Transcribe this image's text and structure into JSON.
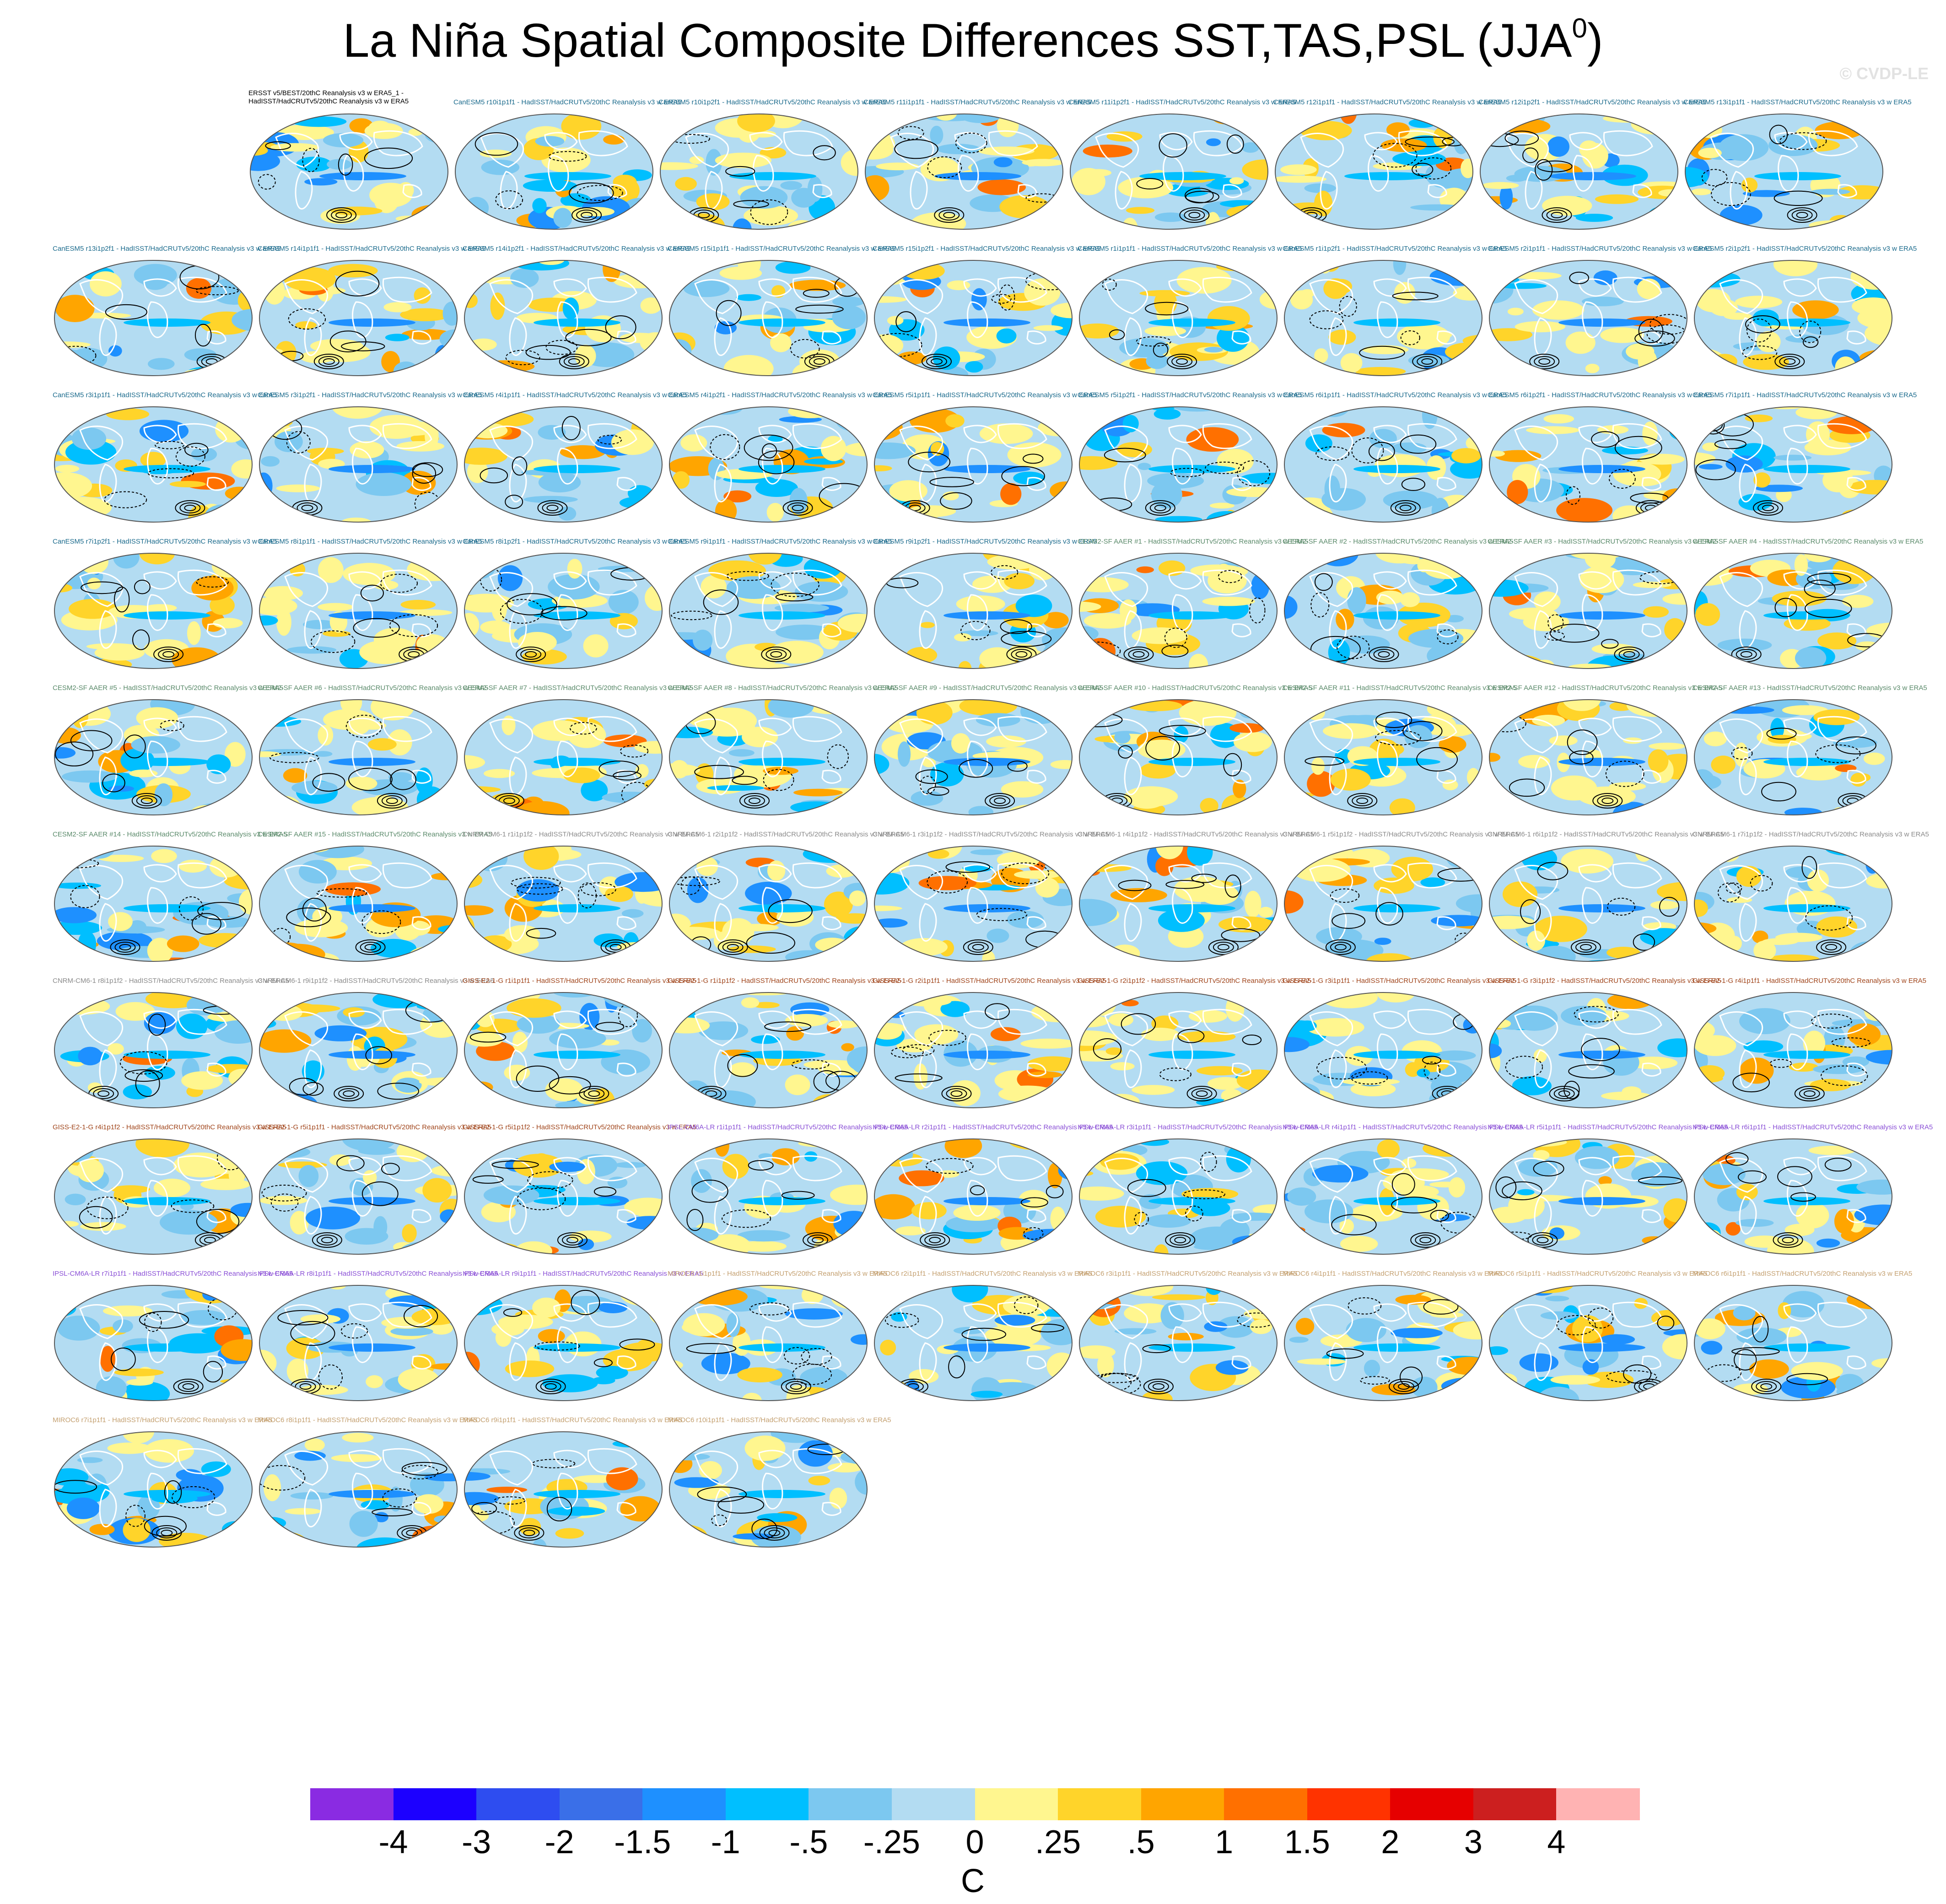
{
  "title": {
    "main": "La Niña Spatial Composite Differences SST,TAS,PSL (JJA",
    "superscript": "0",
    "close": ")"
  },
  "watermark": "© CVDP-LE",
  "chart_data": {
    "type": "heatmap",
    "title": "La Niña Spatial Composite Differences SST,TAS,PSL (JJA0)",
    "description_fields": [
      "SST",
      "TAS",
      "PSL"
    ],
    "season": "JJA0",
    "colorbar": {
      "unit": "C",
      "labels": [
        "-4",
        "-3",
        "-2",
        "-1.5",
        "-1",
        "-.5",
        "-.25",
        "0",
        ".25",
        ".5",
        "1",
        "1.5",
        "2",
        "3",
        "4"
      ],
      "colors": [
        "#8a2be2",
        "#1c00ff",
        "#2e4df0",
        "#3a6fe8",
        "#1e90ff",
        "#00bfff",
        "#7cc8f0",
        "#b3dcf2",
        "#fff68f",
        "#ffd42a",
        "#ffa500",
        "#ff7000",
        "#ff3300",
        "#e60000",
        "#cc1f1f",
        "#ffb3b3"
      ]
    },
    "panels": [
      {
        "title": "ERSST v5/BEST/20thC Reanalysis v3 w ERA5_1 -\nHadISST/HadCRUTv5/20thC Reanalysis v3 w ERA5",
        "color": "#000000"
      },
      {
        "title": "CanESM5 r10i1p1f1 - HadISST/HadCRUTv5/20thC Reanalysis v3 w ERA5",
        "color": "#1a6a8c"
      },
      {
        "title": "CanESM5 r10i1p2f1 - HadISST/HadCRUTv5/20thC Reanalysis v3 w ERA5",
        "color": "#1a6a8c"
      },
      {
        "title": "CanESM5 r11i1p1f1 - HadISST/HadCRUTv5/20thC Reanalysis v3 w ERA5",
        "color": "#1a6a8c"
      },
      {
        "title": "CanESM5 r11i1p2f1 - HadISST/HadCRUTv5/20thC Reanalysis v3 w ERA5",
        "color": "#1a6a8c"
      },
      {
        "title": "CanESM5 r12i1p1f1 - HadISST/HadCRUTv5/20thC Reanalysis v3 w ERA5",
        "color": "#1a6a8c"
      },
      {
        "title": "CanESM5 r12i1p2f1 - HadISST/HadCRUTv5/20thC Reanalysis v3 w ERA5",
        "color": "#1a6a8c"
      },
      {
        "title": "CanESM5 r13i1p1f1 - HadISST/HadCRUTv5/20thC Reanalysis v3 w ERA5",
        "color": "#1a6a8c"
      },
      {
        "title": "CanESM5 r13i1p2f1 - HadISST/HadCRUTv5/20thC Reanalysis v3 w ERA5",
        "color": "#1a6a8c"
      },
      {
        "title": "CanESM5 r14i1p1f1 - HadISST/HadCRUTv5/20thC Reanalysis v3 w ERA5",
        "color": "#1a6a8c"
      },
      {
        "title": "CanESM5 r14i1p2f1 - HadISST/HadCRUTv5/20thC Reanalysis v3 w ERA5",
        "color": "#1a6a8c"
      },
      {
        "title": "CanESM5 r15i1p1f1 - HadISST/HadCRUTv5/20thC Reanalysis v3 w ERA5",
        "color": "#1a6a8c"
      },
      {
        "title": "CanESM5 r15i1p2f1 - HadISST/HadCRUTv5/20thC Reanalysis v3 w ERA5",
        "color": "#1a6a8c"
      },
      {
        "title": "CanESM5 r1i1p1f1 - HadISST/HadCRUTv5/20thC Reanalysis v3 w ERA5",
        "color": "#1a6a8c"
      },
      {
        "title": "CanESM5 r1i1p2f1 - HadISST/HadCRUTv5/20thC Reanalysis v3 w ERA5",
        "color": "#1a6a8c"
      },
      {
        "title": "CanESM5 r2i1p1f1 - HadISST/HadCRUTv5/20thC Reanalysis v3 w ERA5",
        "color": "#1a6a8c"
      },
      {
        "title": "CanESM5 r2i1p2f1 - HadISST/HadCRUTv5/20thC Reanalysis v3 w ERA5",
        "color": "#1a6a8c"
      },
      {
        "title": "CanESM5 r3i1p1f1 - HadISST/HadCRUTv5/20thC Reanalysis v3 w ERA5",
        "color": "#1a6a8c"
      },
      {
        "title": "CanESM5 r3i1p2f1 - HadISST/HadCRUTv5/20thC Reanalysis v3 w ERA5",
        "color": "#1a6a8c"
      },
      {
        "title": "CanESM5 r4i1p1f1 - HadISST/HadCRUTv5/20thC Reanalysis v3 w ERA5",
        "color": "#1a6a8c"
      },
      {
        "title": "CanESM5 r4i1p2f1 - HadISST/HadCRUTv5/20thC Reanalysis v3 w ERA5",
        "color": "#1a6a8c"
      },
      {
        "title": "CanESM5 r5i1p1f1 - HadISST/HadCRUTv5/20thC Reanalysis v3 w ERA5",
        "color": "#1a6a8c"
      },
      {
        "title": "CanESM5 r5i1p2f1 - HadISST/HadCRUTv5/20thC Reanalysis v3 w ERA5",
        "color": "#1a6a8c"
      },
      {
        "title": "CanESM5 r6i1p1f1 - HadISST/HadCRUTv5/20thC Reanalysis v3 w ERA5",
        "color": "#1a6a8c"
      },
      {
        "title": "CanESM5 r6i1p2f1 - HadISST/HadCRUTv5/20thC Reanalysis v3 w ERA5",
        "color": "#1a6a8c"
      },
      {
        "title": "CanESM5 r7i1p1f1 - HadISST/HadCRUTv5/20thC Reanalysis v3 w ERA5",
        "color": "#1a6a8c"
      },
      {
        "title": "CanESM5 r7i1p2f1 - HadISST/HadCRUTv5/20thC Reanalysis v3 w ERA5",
        "color": "#1a6a8c"
      },
      {
        "title": "CanESM5 r8i1p1f1 - HadISST/HadCRUTv5/20thC Reanalysis v3 w ERA5",
        "color": "#1a6a8c"
      },
      {
        "title": "CanESM5 r8i1p2f1 - HadISST/HadCRUTv5/20thC Reanalysis v3 w ERA5",
        "color": "#1a6a8c"
      },
      {
        "title": "CanESM5 r9i1p1f1 - HadISST/HadCRUTv5/20thC Reanalysis v3 w ERA5",
        "color": "#1a6a8c"
      },
      {
        "title": "CanESM5 r9i1p2f1 - HadISST/HadCRUTv5/20thC Reanalysis v3 w ERA5",
        "color": "#1a6a8c"
      },
      {
        "title": "CESM2-SF AAER #1 - HadISST/HadCRUTv5/20thC Reanalysis v3 w ERA5",
        "color": "#5a8a6a"
      },
      {
        "title": "CESM2-SF AAER #2 - HadISST/HadCRUTv5/20thC Reanalysis v3 w ERA5",
        "color": "#5a8a6a"
      },
      {
        "title": "CESM2-SF AAER #3 - HadISST/HadCRUTv5/20thC Reanalysis v3 w ERA5",
        "color": "#5a8a6a"
      },
      {
        "title": "CESM2-SF AAER #4 - HadISST/HadCRUTv5/20thC Reanalysis v3 w ERA5",
        "color": "#5a8a6a"
      },
      {
        "title": "CESM2-SF AAER #5 - HadISST/HadCRUTv5/20thC Reanalysis v3 w ERA5",
        "color": "#5a8a6a"
      },
      {
        "title": "CESM2-SF AAER #6 - HadISST/HadCRUTv5/20thC Reanalysis v3 w ERA5",
        "color": "#5a8a6a"
      },
      {
        "title": "CESM2-SF AAER #7 - HadISST/HadCRUTv5/20thC Reanalysis v3 w ERA5",
        "color": "#5a8a6a"
      },
      {
        "title": "CESM2-SF AAER #8 - HadISST/HadCRUTv5/20thC Reanalysis v3 w ERA5",
        "color": "#5a8a6a"
      },
      {
        "title": "CESM2-SF AAER #9 - HadISST/HadCRUTv5/20thC Reanalysis v3 w ERA5",
        "color": "#5a8a6a"
      },
      {
        "title": "CESM2-SF AAER #10 - HadISST/HadCRUTv5/20thC Reanalysis v3 w ERA5",
        "color": "#5a8a6a"
      },
      {
        "title": "CESM2-SF AAER #11 - HadISST/HadCRUTv5/20thC Reanalysis v3 w ERA5",
        "color": "#5a8a6a"
      },
      {
        "title": "CESM2-SF AAER #12 - HadISST/HadCRUTv5/20thC Reanalysis v3 w ERA5",
        "color": "#5a8a6a"
      },
      {
        "title": "CESM2-SF AAER #13 - HadISST/HadCRUTv5/20thC Reanalysis v3 w ERA5",
        "color": "#5a8a6a"
      },
      {
        "title": "CESM2-SF AAER #14 - HadISST/HadCRUTv5/20thC Reanalysis v3 w ERA5",
        "color": "#5a8a6a"
      },
      {
        "title": "CESM2-SF AAER #15 - HadISST/HadCRUTv5/20thC Reanalysis v3 w ERA5",
        "color": "#5a8a6a"
      },
      {
        "title": "CNRM-CM6-1 r1i1p1f2 - HadISST/HadCRUTv5/20thC Reanalysis v3 w ERA5",
        "color": "#8a8a8a"
      },
      {
        "title": "CNRM-CM6-1 r2i1p1f2 - HadISST/HadCRUTv5/20thC Reanalysis v3 w ERA5",
        "color": "#8a8a8a"
      },
      {
        "title": "CNRM-CM6-1 r3i1p1f2 - HadISST/HadCRUTv5/20thC Reanalysis v3 w ERA5",
        "color": "#8a8a8a"
      },
      {
        "title": "CNRM-CM6-1 r4i1p1f2 - HadISST/HadCRUTv5/20thC Reanalysis v3 w ERA5",
        "color": "#8a8a8a"
      },
      {
        "title": "CNRM-CM6-1 r5i1p1f2 - HadISST/HadCRUTv5/20thC Reanalysis v3 w ERA5",
        "color": "#8a8a8a"
      },
      {
        "title": "CNRM-CM6-1 r6i1p1f2 - HadISST/HadCRUTv5/20thC Reanalysis v3 w ERA5",
        "color": "#8a8a8a"
      },
      {
        "title": "CNRM-CM6-1 r7i1p1f2 - HadISST/HadCRUTv5/20thC Reanalysis v3 w ERA5",
        "color": "#8a8a8a"
      },
      {
        "title": "CNRM-CM6-1 r8i1p1f2 - HadISST/HadCRUTv5/20thC Reanalysis v3 w ERA5",
        "color": "#8a8a8a"
      },
      {
        "title": "CNRM-CM6-1 r9i1p1f2 - HadISST/HadCRUTv5/20thC Reanalysis v3 w ERA5",
        "color": "#8a8a8a"
      },
      {
        "title": "GISS-E2-1-G r1i1p1f1 - HadISST/HadCRUTv5/20thC Reanalysis v3 w ERA5",
        "color": "#a0441a"
      },
      {
        "title": "GISS-E2-1-G r1i1p1f2 - HadISST/HadCRUTv5/20thC Reanalysis v3 w ERA5",
        "color": "#a0441a"
      },
      {
        "title": "GISS-E2-1-G r2i1p1f1 - HadISST/HadCRUTv5/20thC Reanalysis v3 w ERA5",
        "color": "#a0441a"
      },
      {
        "title": "GISS-E2-1-G r2i1p1f2 - HadISST/HadCRUTv5/20thC Reanalysis v3 w ERA5",
        "color": "#a0441a"
      },
      {
        "title": "GISS-E2-1-G r3i1p1f1 - HadISST/HadCRUTv5/20thC Reanalysis v3 w ERA5",
        "color": "#a0441a"
      },
      {
        "title": "GISS-E2-1-G r3i1p1f2 - HadISST/HadCRUTv5/20thC Reanalysis v3 w ERA5",
        "color": "#a0441a"
      },
      {
        "title": "GISS-E2-1-G r4i1p1f1 - HadISST/HadCRUTv5/20thC Reanalysis v3 w ERA5",
        "color": "#a0441a"
      },
      {
        "title": "GISS-E2-1-G r4i1p1f2 - HadISST/HadCRUTv5/20thC Reanalysis v3 w ERA5",
        "color": "#a0441a"
      },
      {
        "title": "GISS-E2-1-G r5i1p1f1 - HadISST/HadCRUTv5/20thC Reanalysis v3 w ERA5",
        "color": "#a0441a"
      },
      {
        "title": "GISS-E2-1-G r5i1p1f2 - HadISST/HadCRUTv5/20thC Reanalysis v3 w ERA5",
        "color": "#a0441a"
      },
      {
        "title": "IPSL-CM6A-LR r1i1p1f1 - HadISST/HadCRUTv5/20thC Reanalysis v3 w ERA5",
        "color": "#8a4fd6"
      },
      {
        "title": "IPSL-CM6A-LR r2i1p1f1 - HadISST/HadCRUTv5/20thC Reanalysis v3 w ERA5",
        "color": "#8a4fd6"
      },
      {
        "title": "IPSL-CM6A-LR r3i1p1f1 - HadISST/HadCRUTv5/20thC Reanalysis v3 w ERA5",
        "color": "#8a4fd6"
      },
      {
        "title": "IPSL-CM6A-LR r4i1p1f1 - HadISST/HadCRUTv5/20thC Reanalysis v3 w ERA5",
        "color": "#8a4fd6"
      },
      {
        "title": "IPSL-CM6A-LR r5i1p1f1 - HadISST/HadCRUTv5/20thC Reanalysis v3 w ERA5",
        "color": "#8a4fd6"
      },
      {
        "title": "IPSL-CM6A-LR r6i1p1f1 - HadISST/HadCRUTv5/20thC Reanalysis v3 w ERA5",
        "color": "#8a4fd6"
      },
      {
        "title": "IPSL-CM6A-LR r7i1p1f1 - HadISST/HadCRUTv5/20thC Reanalysis v3 w ERA5",
        "color": "#8a4fd6"
      },
      {
        "title": "IPSL-CM6A-LR r8i1p1f1 - HadISST/HadCRUTv5/20thC Reanalysis v3 w ERA5",
        "color": "#8a4fd6"
      },
      {
        "title": "IPSL-CM6A-LR r9i1p1f1 - HadISST/HadCRUTv5/20thC Reanalysis v3 w ERA5",
        "color": "#8a4fd6"
      },
      {
        "title": "MIROC6 r1i1p1f1 - HadISST/HadCRUTv5/20thC Reanalysis v3 w ERA5",
        "color": "#c4a070"
      },
      {
        "title": "MIROC6 r2i1p1f1 - HadISST/HadCRUTv5/20thC Reanalysis v3 w ERA5",
        "color": "#c4a070"
      },
      {
        "title": "MIROC6 r3i1p1f1 - HadISST/HadCRUTv5/20thC Reanalysis v3 w ERA5",
        "color": "#c4a070"
      },
      {
        "title": "MIROC6 r4i1p1f1 - HadISST/HadCRUTv5/20thC Reanalysis v3 w ERA5",
        "color": "#c4a070"
      },
      {
        "title": "MIROC6 r5i1p1f1 - HadISST/HadCRUTv5/20thC Reanalysis v3 w ERA5",
        "color": "#c4a070"
      },
      {
        "title": "MIROC6 r6i1p1f1 - HadISST/HadCRUTv5/20thC Reanalysis v3 w ERA5",
        "color": "#c4a070"
      },
      {
        "title": "MIROC6 r7i1p1f1 - HadISST/HadCRUTv5/20thC Reanalysis v3 w ERA5",
        "color": "#c4a070"
      },
      {
        "title": "MIROC6 r8i1p1f1 - HadISST/HadCRUTv5/20thC Reanalysis v3 w ERA5",
        "color": "#c4a070"
      },
      {
        "title": "MIROC6 r9i1p1f1 - HadISST/HadCRUTv5/20thC Reanalysis v3 w ERA5",
        "color": "#c4a070"
      },
      {
        "title": "MIROC6 r10i1p1f1 - HadISST/HadCRUTv5/20thC Reanalysis v3 w ERA5",
        "color": "#c4a070"
      }
    ]
  }
}
